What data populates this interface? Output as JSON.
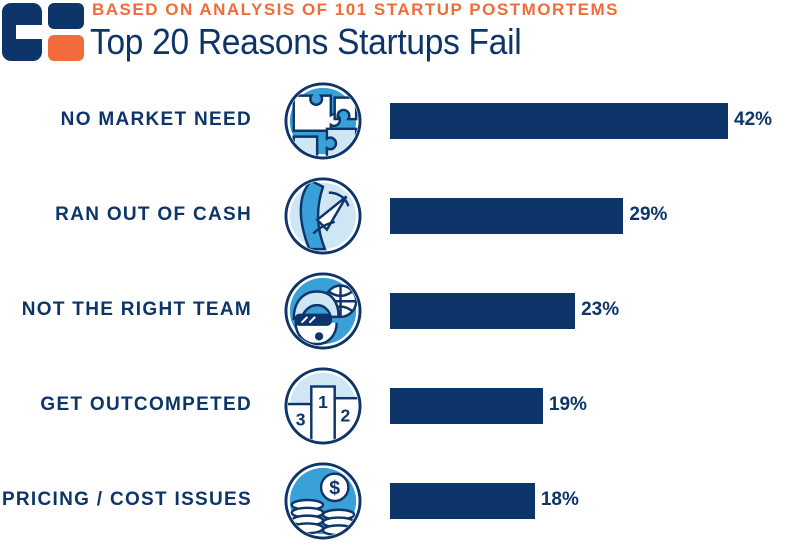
{
  "header": {
    "subtitle": "BASED ON ANALYSIS OF 101 STARTUP POSTMORTEMS",
    "title": "Top 20 Reasons Startups Fail"
  },
  "colors": {
    "navy": "#0d3569",
    "orange": "#f26b3a",
    "light_blue": "#3aa0d8",
    "pale_blue": "#cfe6f5"
  },
  "icons": [
    "puzzle-icon",
    "cash-hand-icon",
    "team-icon",
    "podium-icon",
    "coins-icon"
  ],
  "podium_numbers": [
    "1",
    "2",
    "3"
  ],
  "coin_symbol": "$",
  "chart_data": {
    "type": "bar",
    "orientation": "horizontal",
    "title": "Top 20 Reasons Startups Fail",
    "subtitle": "BASED ON ANALYSIS OF 101 STARTUP POSTMORTEMS",
    "categories": [
      "NO MARKET NEED",
      "RAN OUT OF CASH",
      "NOT THE RIGHT TEAM",
      "GET OUTCOMPETED",
      "PRICING / COST ISSUES"
    ],
    "values": [
      42,
      29,
      23,
      19,
      18
    ],
    "value_labels": [
      "42%",
      "29%",
      "23%",
      "19%",
      "18%"
    ],
    "unit": "%",
    "xlim": [
      0,
      42
    ],
    "grid": false
  }
}
